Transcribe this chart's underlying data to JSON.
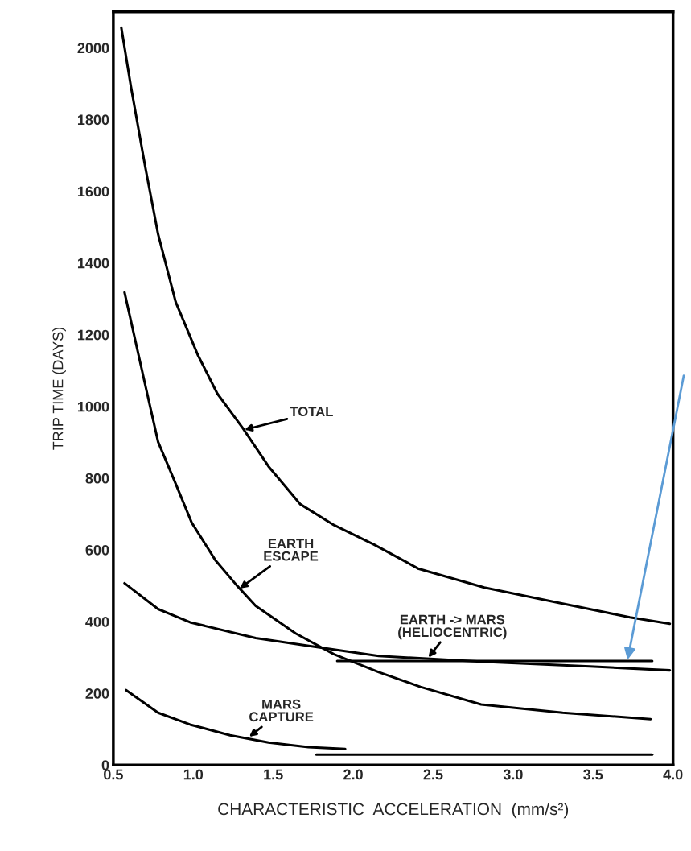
{
  "chart_data": {
    "type": "line",
    "xlabel": "CHARACTERISTIC  ACCELERATION  (mm/s²)",
    "ylabel": "TRIP TIME (DAYS)",
    "xlim": [
      0.5,
      4.0
    ],
    "ylim": [
      0,
      2100
    ],
    "xticks": [
      {
        "value": 0.5,
        "label": "0.5"
      },
      {
        "value": 1.0,
        "label": "1.0"
      },
      {
        "value": 1.5,
        "label": "1.5"
      },
      {
        "value": 2.0,
        "label": "2.0"
      },
      {
        "value": 2.5,
        "label": "2.5"
      },
      {
        "value": 3.0,
        "label": "3.0"
      },
      {
        "value": 3.5,
        "label": "3.5"
      },
      {
        "value": 4.0,
        "label": "4.0"
      }
    ],
    "yticks": [
      0,
      200,
      400,
      600,
      800,
      1000,
      1200,
      1400,
      1600,
      1800,
      2000
    ],
    "grid": false,
    "legend": false,
    "marker": "none",
    "line_style": "solid",
    "series": [
      {
        "color": "#000000",
        "x": [
          0.55,
          0.61,
          0.7,
          0.78,
          0.89,
          1.03,
          1.15,
          1.31,
          1.47,
          1.67,
          1.88,
          2.13,
          2.41,
          2.82,
          3.31,
          3.73,
          3.91,
          3.98
        ],
        "values": [
          2056,
          1892,
          1667,
          1480,
          1291,
          1142,
          1036,
          939,
          833,
          727,
          669,
          615,
          547,
          495,
          450,
          412,
          399,
          394
        ]
      },
      {
        "color": "#000000",
        "x": [
          0.57,
          0.7,
          0.78,
          0.88,
          0.99,
          1.14,
          1.27,
          1.39,
          1.64,
          1.88,
          2.16,
          2.42,
          2.8,
          3.31,
          3.86
        ],
        "values": [
          1318,
          1059,
          901,
          795,
          676,
          570,
          502,
          444,
          367,
          309,
          259,
          218,
          169,
          146,
          128
        ]
      },
      {
        "color": "#000000",
        "x": [
          0.57,
          0.78,
          0.98,
          1.39,
          1.8,
          2.16,
          2.82,
          3.48,
          3.98
        ],
        "values": [
          507,
          435,
          398,
          354,
          327,
          304,
          288,
          275,
          264
        ]
      },
      {
        "color": "#000000",
        "x": [
          0.58,
          0.78,
          0.98,
          1.23,
          1.47,
          1.72,
          1.95
        ],
        "values": [
          209,
          146,
          113,
          83,
          63,
          50,
          45
        ]
      },
      {
        "color": "#000000",
        "x": [
          1.9,
          3.87
        ],
        "values": [
          290,
          290
        ]
      },
      {
        "color": "#000000",
        "x": [
          1.77,
          3.87
        ],
        "values": [
          29,
          29
        ]
      }
    ],
    "annotations": [
      {
        "text": "TOTAL",
        "x": 1.32,
        "y": 935
      },
      {
        "text": "EARTH\nESCAPE",
        "x": 1.29,
        "y": 492
      },
      {
        "text": "EARTH -> MARS\n(HELIOCENTRIC)",
        "x": 2.47,
        "y": 300
      },
      {
        "text": "MARS\nCAPTURE",
        "x": 1.35,
        "y": 79
      }
    ]
  }
}
